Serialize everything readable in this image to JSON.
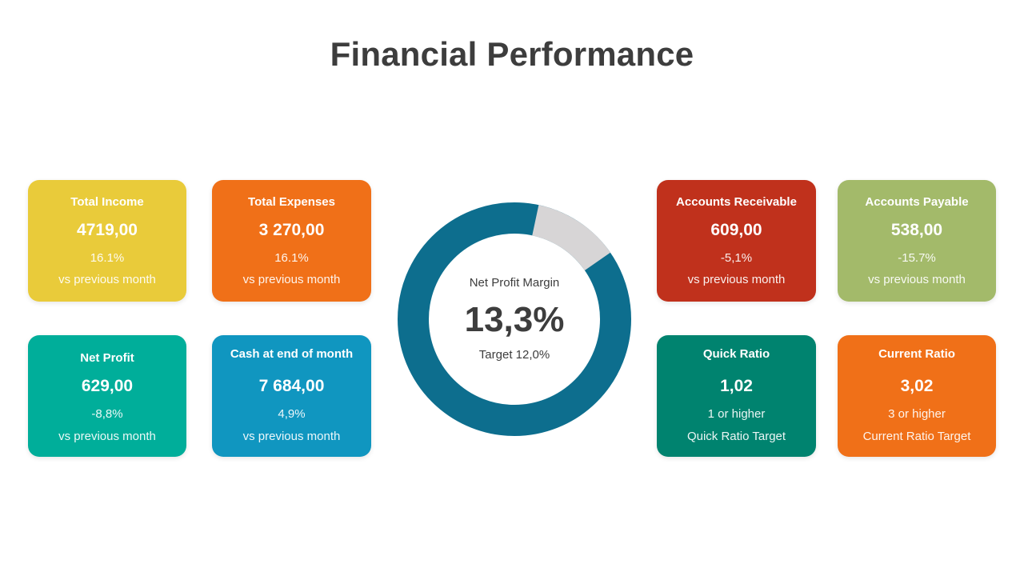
{
  "title": "Financial Performance",
  "colors": {
    "yellow": "#E9CB3A",
    "orange": "#F07018",
    "teal": "#00AE9A",
    "blue": "#1096C0",
    "red": "#C0311C",
    "olive": "#A3BA6A",
    "dark_teal": "#00836F",
    "donut_main": "#0D6E8E",
    "donut_rest": "#D7D5D6"
  },
  "cards": {
    "total_income": {
      "title": "Total Income",
      "value": "4719,00",
      "line1": "16.1%",
      "line2": "vs previous month"
    },
    "total_expenses": {
      "title": "Total Expenses",
      "value": "3 270,00",
      "line1": "16.1%",
      "line2": "vs previous month"
    },
    "net_profit": {
      "title": "Net Profit",
      "value": "629,00",
      "line1": "-8,8%",
      "line2": "vs previous month"
    },
    "cash_end_month": {
      "title": "Cash at end of month",
      "value": "7 684,00",
      "line1": "4,9%",
      "line2": "vs previous month"
    },
    "accounts_receivable": {
      "title": "Accounts Receivable",
      "value": "609,00",
      "line1": "-5,1%",
      "line2": "vs previous month"
    },
    "accounts_payable": {
      "title": "Accounts Payable",
      "value": "538,00",
      "line1": "-15.7%",
      "line2": "vs previous month"
    },
    "quick_ratio": {
      "title": "Quick Ratio",
      "value": "1,02",
      "line1": "1 or higher",
      "line2": "Quick Ratio Target"
    },
    "current_ratio": {
      "title": "Current Ratio",
      "value": "3,02",
      "line1": "3 or higher",
      "line2": "Current Ratio Target"
    }
  },
  "donut": {
    "label": "Net Profit Margin",
    "value": "13,3%",
    "target": "Target  12,0%",
    "remainder_fraction": 0.12
  }
}
